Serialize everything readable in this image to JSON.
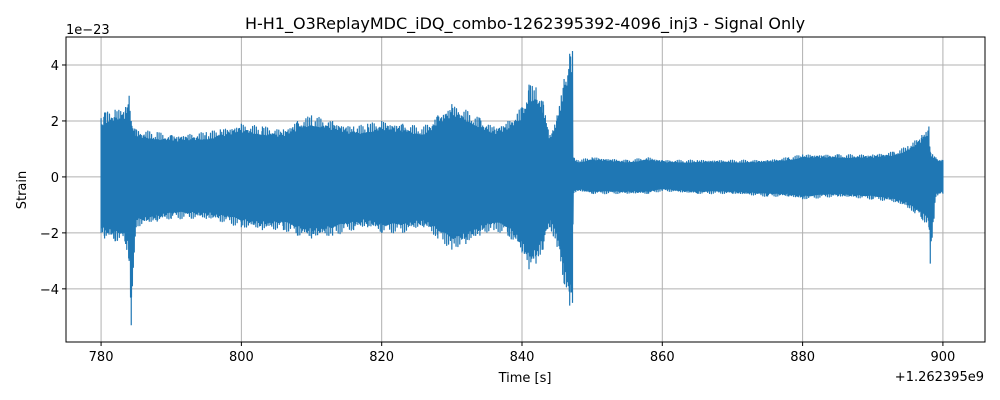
{
  "chart_data": {
    "type": "line",
    "title": "H-H1_O3ReplayMDC_iDQ_combo-1262395392-4096_inj3 - Signal Only",
    "xlabel": "Time [s]",
    "ylabel": "Strain",
    "x_offset_label": "+1.262395e9",
    "y_scale_label": "1e−23",
    "x_offset": 1262395000,
    "y_scale": 1e-23,
    "xlim": [
      775,
      906
    ],
    "ylim": [
      -5.9,
      5.0
    ],
    "xticks": [
      780,
      800,
      820,
      840,
      860,
      880,
      900
    ],
    "yticks": [
      -4,
      -2,
      0,
      2,
      4
    ],
    "xtick_labels": [
      "780",
      "800",
      "820",
      "840",
      "860",
      "880",
      "900"
    ],
    "ytick_labels": [
      "−4",
      "−2",
      "0",
      "2",
      "4"
    ],
    "grid": true,
    "series": [
      {
        "color": "#1f77b4",
        "envelope": {
          "x": [
            780.0,
            780.5,
            782,
            783.5,
            784.0,
            784.3,
            785,
            788,
            790,
            795,
            797,
            800,
            803,
            806,
            808,
            810,
            813,
            816,
            818,
            820,
            823,
            826,
            828,
            830,
            832,
            834,
            836,
            838,
            840,
            841,
            842,
            843,
            844,
            845,
            846,
            846.8,
            847.2,
            847.3,
            848,
            850,
            855,
            858,
            860,
            865,
            870,
            875,
            878,
            880,
            885,
            890,
            893,
            895,
            896,
            897,
            898,
            898.2,
            899,
            900
          ],
          "upper": [
            2.1,
            2.3,
            2.4,
            2.5,
            2.9,
            2.0,
            1.7,
            1.6,
            1.5,
            1.6,
            1.7,
            1.9,
            1.8,
            1.7,
            2.0,
            2.2,
            2.0,
            1.8,
            1.9,
            2.0,
            1.9,
            1.8,
            2.2,
            2.6,
            2.4,
            2.1,
            1.8,
            2.0,
            2.5,
            3.3,
            3.2,
            2.7,
            1.5,
            2.2,
            3.5,
            4.4,
            4.5,
            0.7,
            0.6,
            0.7,
            0.6,
            0.7,
            0.6,
            0.6,
            0.6,
            0.6,
            0.7,
            0.8,
            0.8,
            0.8,
            0.9,
            1.1,
            1.3,
            1.5,
            1.8,
            0.9,
            0.7,
            0.6
          ],
          "lower": [
            -2.0,
            -2.2,
            -2.3,
            -2.4,
            -3.0,
            -5.3,
            -1.8,
            -1.6,
            -1.5,
            -1.5,
            -1.6,
            -1.8,
            -1.9,
            -1.9,
            -2.1,
            -2.2,
            -2.1,
            -1.9,
            -1.8,
            -2.0,
            -2.0,
            -1.8,
            -2.2,
            -2.6,
            -2.4,
            -2.1,
            -1.9,
            -2.1,
            -2.7,
            -3.3,
            -3.1,
            -2.6,
            -1.8,
            -2.5,
            -3.8,
            -4.6,
            -4.5,
            -0.6,
            -0.5,
            -0.6,
            -0.6,
            -0.6,
            -0.5,
            -0.6,
            -0.6,
            -0.7,
            -0.7,
            -0.8,
            -0.7,
            -0.8,
            -0.9,
            -1.1,
            -1.3,
            -1.5,
            -1.8,
            -3.1,
            -0.7,
            -0.6
          ]
        }
      }
    ]
  }
}
